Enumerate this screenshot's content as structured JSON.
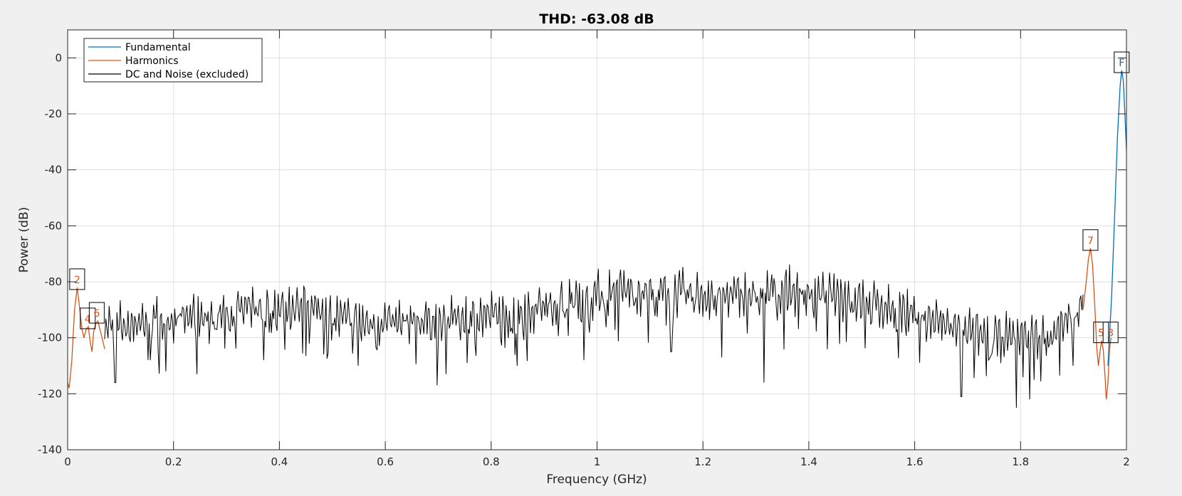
{
  "chart_data": {
    "type": "line",
    "title": "THD: -63.08 dB",
    "xlabel": "Frequency (GHz)",
    "ylabel": "Power (dB)",
    "xlim": [
      0,
      2
    ],
    "ylim": [
      -140,
      10
    ],
    "xticks": [
      0,
      0.2,
      0.4,
      0.6,
      0.8,
      1,
      1.2,
      1.4,
      1.6,
      1.8,
      2
    ],
    "xtick_labels": [
      "0",
      "0.2",
      "0.4",
      "0.6",
      "0.8",
      "1",
      "1.2",
      "1.4",
      "1.6",
      "1.8",
      "2"
    ],
    "yticks": [
      0,
      -20,
      -40,
      -60,
      -80,
      -100,
      -120,
      -140
    ],
    "ytick_labels": [
      "0",
      "-20",
      "-40",
      "-60",
      "-80",
      "-100",
      "-120",
      "-140"
    ],
    "grid": true,
    "legend_position": "top-left",
    "series": [
      {
        "name": "Fundamental",
        "color": "#0072bd",
        "points": [
          [
            1.965,
            -110
          ],
          [
            1.972,
            -85
          ],
          [
            1.978,
            -55
          ],
          [
            1.983,
            -28
          ],
          [
            1.988,
            -10
          ],
          [
            1.991,
            -4.5
          ],
          [
            1.994,
            -8
          ],
          [
            1.997,
            -20
          ],
          [
            2.0,
            -33
          ]
        ]
      },
      {
        "name": "Harmonics",
        "color": "#d95319",
        "segments": [
          [
            [
              0.0,
              -116
            ],
            [
              0.003,
              -118
            ],
            [
              0.008,
              -108
            ],
            [
              0.013,
              -90
            ],
            [
              0.018,
              -82
            ],
            [
              0.023,
              -90
            ],
            [
              0.027,
              -97
            ],
            [
              0.031,
              -100
            ],
            [
              0.035,
              -97
            ],
            [
              0.039,
              -96
            ],
            [
              0.043,
              -102
            ],
            [
              0.046,
              -105
            ],
            [
              0.049,
              -98
            ],
            [
              0.053,
              -95
            ],
            [
              0.057,
              -94
            ],
            [
              0.061,
              -97
            ],
            [
              0.065,
              -100
            ],
            [
              0.07,
              -104
            ]
          ],
          [
            [
              1.918,
              -90
            ],
            [
              1.924,
              -80
            ],
            [
              1.928,
              -72
            ],
            [
              1.932,
              -68
            ],
            [
              1.936,
              -74
            ],
            [
              1.94,
              -88
            ],
            [
              1.944,
              -104
            ],
            [
              1.947,
              -110
            ],
            [
              1.95,
              -105
            ],
            [
              1.953,
              -101
            ],
            [
              1.956,
              -104
            ],
            [
              1.959,
              -112
            ],
            [
              1.962,
              -122
            ],
            [
              1.965,
              -116
            ],
            [
              1.968,
              -104
            ],
            [
              1.971,
              -100
            ]
          ]
        ]
      },
      {
        "name": "DC and Noise (excluded)",
        "color": "#000000",
        "seed": 7,
        "anchors": [
          [
            0.07,
            -96
          ],
          [
            0.15,
            -94
          ],
          [
            0.25,
            -92
          ],
          [
            0.35,
            -90
          ],
          [
            0.45,
            -89
          ],
          [
            0.55,
            -95
          ],
          [
            0.65,
            -94
          ],
          [
            0.75,
            -93
          ],
          [
            0.85,
            -91
          ],
          [
            0.95,
            -86
          ],
          [
            1.05,
            -83
          ],
          [
            1.15,
            -84
          ],
          [
            1.25,
            -85
          ],
          [
            1.35,
            -83
          ],
          [
            1.45,
            -85
          ],
          [
            1.55,
            -89
          ],
          [
            1.65,
            -95
          ],
          [
            1.75,
            -100
          ],
          [
            1.85,
            -99
          ],
          [
            1.918,
            -88
          ]
        ],
        "dips": [
          [
            0.09,
            -116
          ],
          [
            0.186,
            -112
          ],
          [
            0.245,
            -113
          ],
          [
            0.37,
            -108
          ],
          [
            0.548,
            -110
          ],
          [
            0.698,
            -117
          ],
          [
            0.85,
            -110
          ],
          [
            0.975,
            -108
          ],
          [
            1.14,
            -105
          ],
          [
            1.235,
            -107
          ],
          [
            1.315,
            -116
          ],
          [
            1.688,
            -121
          ],
          [
            1.792,
            -125
          ],
          [
            1.818,
            -122
          ],
          [
            1.9,
            -110
          ]
        ]
      }
    ],
    "markers": [
      {
        "label": "2",
        "x": 0.018,
        "y": -82,
        "color": "#d95319"
      },
      {
        "label": "4",
        "x": 0.038,
        "y": -96,
        "color": "#d95319"
      },
      {
        "label": "6",
        "x": 0.055,
        "y": -94,
        "color": "#d95319"
      },
      {
        "label": "7",
        "x": 1.932,
        "y": -68,
        "color": "#d95319"
      },
      {
        "label": "5",
        "x": 1.952,
        "y": -101,
        "color": "#d95319"
      },
      {
        "label": "3",
        "x": 1.97,
        "y": -101,
        "color": "#d95319"
      },
      {
        "label": "F",
        "x": 1.991,
        "y": -4.5,
        "color": "#0072bd"
      }
    ]
  }
}
